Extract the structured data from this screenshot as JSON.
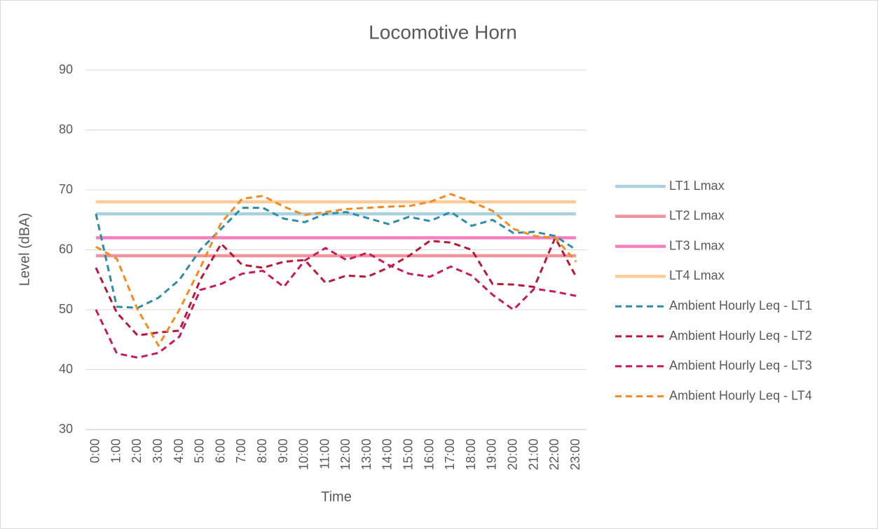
{
  "chart_data": {
    "type": "line",
    "title": "Locomotive Horn",
    "x_label": "Time",
    "y_label": "Level (dBA)",
    "categories": [
      "0:00",
      "1:00",
      "2:00",
      "3:00",
      "4:00",
      "5:00",
      "6:00",
      "7:00",
      "8:00",
      "9:00",
      "10:00",
      "11:00",
      "12:00",
      "13:00",
      "14:00",
      "15:00",
      "16:00",
      "17:00",
      "18:00",
      "19:00",
      "20:00",
      "21:00",
      "22:00",
      "23:00"
    ],
    "ylim": [
      30,
      90
    ],
    "yticks": [
      30,
      40,
      50,
      60,
      70,
      80,
      90
    ],
    "grid": true,
    "legend": "right",
    "series": [
      {
        "name": "LT1 Lmax",
        "color": "#a9d1e0",
        "style": "solid",
        "values": [
          66,
          66,
          66,
          66,
          66,
          66,
          66,
          66,
          66,
          66,
          66,
          66,
          66,
          66,
          66,
          66,
          66,
          66,
          66,
          66,
          66,
          66,
          66,
          66
        ]
      },
      {
        "name": "LT2 Lmax",
        "color": "#f0939a",
        "style": "solid",
        "values": [
          59,
          59,
          59,
          59,
          59,
          59,
          59,
          59,
          59,
          59,
          59,
          59,
          59,
          59,
          59,
          59,
          59,
          59,
          59,
          59,
          59,
          59,
          59,
          59
        ]
      },
      {
        "name": "LT3 Lmax",
        "color": "#f77fbf",
        "style": "solid",
        "values": [
          62,
          62,
          62,
          62,
          62,
          62,
          62,
          62,
          62,
          62,
          62,
          62,
          62,
          62,
          62,
          62,
          62,
          62,
          62,
          62,
          62,
          62,
          62,
          62
        ]
      },
      {
        "name": "LT4 Lmax",
        "color": "#fdcc97",
        "style": "solid",
        "values": [
          68,
          68,
          68,
          68,
          68,
          68,
          68,
          68,
          68,
          68,
          68,
          68,
          68,
          68,
          68,
          68,
          68,
          68,
          68,
          68,
          68,
          68,
          68,
          68
        ]
      },
      {
        "name": "Ambient Hourly Leq - LT1",
        "color": "#2e8ca8",
        "style": "dashed",
        "values": [
          66,
          50.5,
          50.3,
          52,
          55,
          60,
          63.5,
          67,
          67,
          65.2,
          64.6,
          66,
          66.3,
          65.3,
          64.3,
          65.5,
          64.8,
          66.3,
          64,
          65,
          62.8,
          63,
          62.3,
          60
        ]
      },
      {
        "name": "Ambient Hourly Leq - LT2",
        "color": "#b8173a",
        "style": "dashed",
        "values": [
          57,
          49.5,
          45.7,
          46.2,
          46.5,
          55,
          61,
          57.5,
          57,
          58,
          58.3,
          54.5,
          55.7,
          55.5,
          57,
          59,
          61.5,
          61.2,
          60,
          54.3,
          54.2,
          53.8,
          62,
          55.5
        ]
      },
      {
        "name": "Ambient Hourly Leq - LT3",
        "color": "#c8195f",
        "style": "dashed",
        "values": [
          50,
          42.7,
          42,
          42.8,
          45.5,
          53.3,
          54.3,
          56,
          56.5,
          53.8,
          58.2,
          60.3,
          58.3,
          59.5,
          57.5,
          56,
          55.5,
          57.2,
          55.7,
          52.5,
          50,
          53.5,
          53,
          52.3
        ]
      },
      {
        "name": "Ambient Hourly Leq - LT4",
        "color": "#f58a1e",
        "style": "dashed",
        "values": [
          60.5,
          58.5,
          50,
          44,
          50,
          57,
          64.5,
          68.5,
          69,
          67.2,
          65.8,
          66.3,
          66.8,
          67,
          67.2,
          67.3,
          68,
          69.3,
          68,
          66.5,
          63.5,
          62.3,
          62,
          58
        ]
      }
    ]
  }
}
